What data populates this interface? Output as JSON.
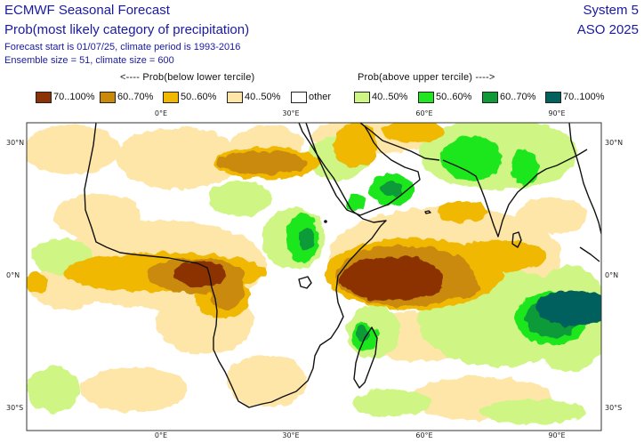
{
  "header": {
    "title": "ECMWF Seasonal Forecast",
    "subtitle": "Prob(most likely category of precipitation)",
    "line3": "Forecast start is 01/07/25, climate period is 1993-2016",
    "line4": "Ensemble size = 51, climate size = 600",
    "system": "System 5",
    "season": "ASO 2025"
  },
  "legend": {
    "below_heading": "<---- Prob(below lower tercile)",
    "above_heading": "Prob(above upper tercile) ---->",
    "items": [
      {
        "label": "70..100%",
        "color": "#8b3304"
      },
      {
        "label": "60..70%",
        "color": "#c98a0a"
      },
      {
        "label": "50..60%",
        "color": "#f0b800"
      },
      {
        "label": "40..50%",
        "color": "#fde6a8"
      },
      {
        "label": "other",
        "color": "#ffffff"
      },
      {
        "label": "40..50%",
        "color": "#cff584"
      },
      {
        "label": "50..60%",
        "color": "#1fe61f"
      },
      {
        "label": "60..70%",
        "color": "#0f9a38"
      },
      {
        "label": "70..100%",
        "color": "#00615d"
      }
    ]
  },
  "map": {
    "lon_ticks": [
      "0°E",
      "30°E",
      "60°E",
      "90°E"
    ],
    "lat_ticks": [
      "30°N",
      "0°N",
      "30°S"
    ]
  }
}
